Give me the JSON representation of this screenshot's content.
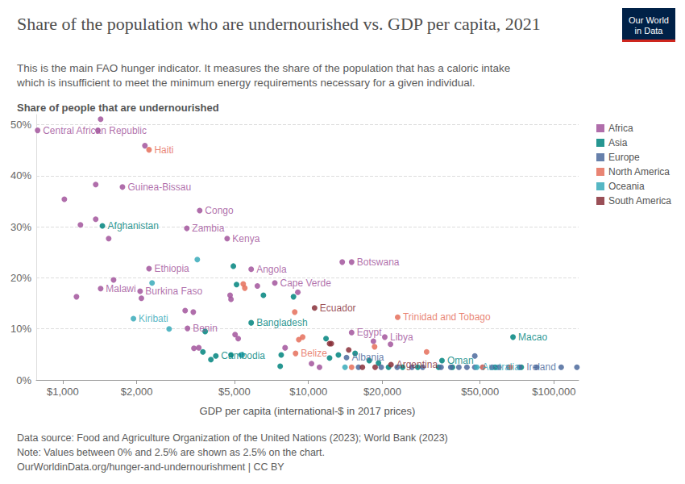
{
  "chart_data": {
    "type": "scatter",
    "title": "Share of the population who are undernourished vs. GDP per capita, 2021",
    "subtitle": "This is the main FAO hunger indicator. It measures the share of the population that has a caloric intake which is insufficient to meet the minimum energy requirements necessary for a given individual.",
    "y_label": "Share of people that are undernourished",
    "x_label": "GDP per capita (international-$ in 2017 prices)",
    "notes": [
      "Data source: Food and Agriculture Organization of the United Nations (2023); World Bank (2023)",
      "Note: Values between 0% and 2.5% are shown as 2.5% on the chart.",
      "OurWorldinData.org/hunger-and-undernourishment | CC BY"
    ],
    "logo": [
      "Our World",
      "in Data"
    ],
    "log": "x",
    "grid": true,
    "legend": "right",
    "marker": "circle",
    "xlim": [
      780,
      126000
    ],
    "xticks": [
      {
        "value": 1000,
        "label": "$1,000"
      },
      {
        "value": 2000,
        "label": "$2,000"
      },
      {
        "value": 5000,
        "label": "$5,000"
      },
      {
        "value": 10000,
        "label": "$10,000"
      },
      {
        "value": 20000,
        "label": "$20,000"
      },
      {
        "value": 50000,
        "label": "$50,000"
      },
      {
        "value": 100000,
        "label": "$100,000"
      }
    ],
    "ylim": [
      0,
      52
    ],
    "yticks": [
      {
        "value": 0,
        "label": "0%"
      },
      {
        "value": 10,
        "label": "10%"
      },
      {
        "value": 20,
        "label": "20%"
      },
      {
        "value": 30,
        "label": "30%"
      },
      {
        "value": 40,
        "label": "40%"
      },
      {
        "value": 50,
        "label": "50%"
      }
    ],
    "series": [
      {
        "name": "Africa",
        "color": "#a2559c",
        "x": [
          790,
          1426,
          1390,
          2160,
          1015,
          1362,
          1750,
          1180,
          1362,
          1538,
          3610,
          3200,
          4670,
          13740,
          15000,
          2245,
          5850,
          7300,
          6200,
          9060,
          1426,
          1610,
          2065,
          2090,
          1137,
          4800,
          4840,
          3150,
          3400,
          3220,
          5030,
          5180,
          3420,
          3580,
          8040,
          10300,
          11100,
          20470,
          18400,
          15000,
          21600
        ],
        "values": [
          48.9,
          51.1,
          48.9,
          45.9,
          35.4,
          38.3,
          37.8,
          30.4,
          31.5,
          27.7,
          33.2,
          29.7,
          27.7,
          23.1,
          23.1,
          21.8,
          21.7,
          19.0,
          18.4,
          17.2,
          17.9,
          19.6,
          17.4,
          16.0,
          16.3,
          16.6,
          15.8,
          13.6,
          13.3,
          10.1,
          8.9,
          8.1,
          6.2,
          6.3,
          6.3,
          3.2,
          2.5,
          8.4,
          7.6,
          9.3,
          7.0
        ],
        "labels": [
          "Central African Republic",
          null,
          null,
          null,
          null,
          null,
          "Guinea-Bissau",
          null,
          null,
          null,
          "Congo",
          "Zambia",
          "Kenya",
          null,
          "Botswana",
          "Ethiopia",
          "Angola",
          "Cape Verde",
          null,
          null,
          "Malawi",
          null,
          "Burkina Faso",
          null,
          null,
          null,
          null,
          null,
          null,
          "Benin",
          null,
          null,
          null,
          null,
          null,
          null,
          null,
          "Libya",
          null,
          "Egypt",
          null
        ]
      },
      {
        "name": "Asia",
        "color": "#00847e",
        "x": [
          1450,
          4950,
          5100,
          6560,
          8700,
          5850,
          3800,
          4200,
          3720,
          4010,
          4840,
          5330,
          7680,
          7750,
          11800,
          13250,
          15500,
          17700,
          19300,
          21200,
          24200,
          27900,
          33900,
          38600,
          35000,
          57600,
          73600,
          68100,
          12200
        ],
        "values": [
          30.2,
          22.3,
          18.7,
          16.6,
          16.3,
          11.2,
          9.5,
          4.7,
          5.5,
          4.0,
          4.9,
          4.9,
          2.7,
          4.9,
          8.1,
          4.9,
          5.2,
          3.8,
          3.3,
          2.5,
          2.5,
          2.5,
          2.5,
          2.5,
          3.8,
          2.5,
          2.5,
          8.4,
          4.3
        ],
        "labels": [
          "Afghanistan",
          null,
          null,
          null,
          null,
          "Bangladesh",
          null,
          "Cambodia",
          null,
          null,
          null,
          null,
          null,
          null,
          null,
          null,
          null,
          null,
          null,
          null,
          null,
          null,
          null,
          null,
          "Oman",
          null,
          null,
          "Macao",
          null
        ]
      },
      {
        "name": "Europe",
        "color": "#4c6a9c",
        "x": [
          14300,
          16000,
          19800,
          23000,
          26400,
          29200,
          34700,
          38000,
          41000,
          44200,
          47600,
          51300,
          56000,
          59700,
          65500,
          72300,
          85000,
          107000,
          124000,
          47600
        ],
        "values": [
          4.4,
          2.5,
          2.5,
          2.5,
          2.5,
          2.5,
          2.5,
          2.5,
          2.5,
          2.5,
          2.5,
          2.5,
          2.5,
          2.5,
          2.5,
          2.5,
          2.5,
          2.5,
          2.5,
          4.7
        ],
        "labels": [
          "Albania",
          null,
          null,
          null,
          null,
          null,
          null,
          null,
          null,
          null,
          null,
          null,
          null,
          null,
          null,
          null,
          null,
          "Ireland",
          null,
          null
        ]
      },
      {
        "name": "North America",
        "color": "#e56e5a",
        "x": [
          2245,
          5430,
          5510,
          8800,
          9140,
          8870,
          9480,
          15000,
          23100,
          18600,
          30300,
          51300,
          66500
        ],
        "values": [
          45.1,
          18.8,
          18.0,
          13.3,
          7.9,
          5.2,
          8.4,
          2.5,
          12.3,
          6.5,
          5.5,
          2.5,
          2.5
        ],
        "labels": [
          "Haiti",
          null,
          null,
          null,
          null,
          "Belize",
          null,
          null,
          "Trinidad and Tobago",
          null,
          null,
          null,
          null
        ]
      },
      {
        "name": "Oceania",
        "color": "#38aaba",
        "x": [
          1940,
          2710,
          3530,
          2310,
          5380,
          48500,
          14100
        ],
        "values": [
          12.0,
          10.0,
          23.6,
          19.0,
          4.9,
          2.5,
          2.5
        ],
        "labels": [
          "Kiribati",
          null,
          null,
          null,
          null,
          "Australia",
          null
        ]
      },
      {
        "name": "South America",
        "color": "#883039",
        "x": [
          10600,
          21700,
          12200,
          12400,
          14600,
          16600,
          18700
        ],
        "values": [
          14.1,
          3.0,
          7.1,
          7.1,
          5.9,
          2.5,
          2.5
        ],
        "labels": [
          "Ecuador",
          "Argentina",
          null,
          null,
          null,
          null,
          null
        ]
      }
    ]
  }
}
